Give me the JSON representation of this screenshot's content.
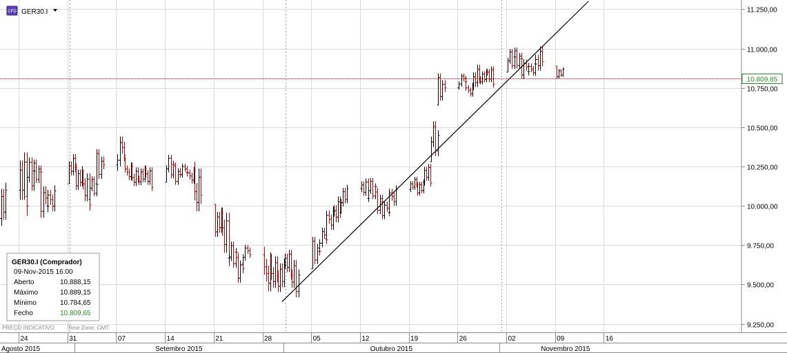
{
  "symbol": {
    "label": "GER30.I",
    "icon": "cfd-icon",
    "dropdown_icon": "dropdown-caret-icon"
  },
  "price_tag": "10.809,65",
  "info_panel": {
    "title": "GER30.I (Comprador)",
    "datetime": "09-Nov-2015 16:00",
    "rows": [
      {
        "label": "Aberto",
        "value": "10.888,15"
      },
      {
        "label": "Máximo",
        "value": "10.889,15"
      },
      {
        "label": "Mínimo",
        "value": "10.784,65"
      },
      {
        "label": "Fecho",
        "value": "10.809,65"
      }
    ]
  },
  "footer_note": {
    "indicative": "PREÇO INDICATIVO",
    "timezone": "Time Zone: GMT"
  },
  "colors": {
    "up": "#000000",
    "down": "#c00000",
    "grid": "#d9d9d9",
    "price_line": "#c00000",
    "price_tag": "#2a8a2a"
  },
  "chart_data": {
    "type": "ohlc",
    "title": "",
    "xlabel": "",
    "ylabel": "",
    "ylim": [
      9200,
      11300
    ],
    "grid": true,
    "y_ticks": [
      {
        "value": 9250,
        "label": "9.250,00"
      },
      {
        "value": 9500,
        "label": "9.500,00"
      },
      {
        "value": 9750,
        "label": "9.750,00"
      },
      {
        "value": 10000,
        "label": "10.000,00"
      },
      {
        "value": 10250,
        "label": "10.250,00"
      },
      {
        "value": 10500,
        "label": "10.500,00"
      },
      {
        "value": 10750,
        "label": "10.750,00"
      },
      {
        "value": 11000,
        "label": "11.000,00"
      },
      {
        "value": 11250,
        "label": "11.250,00"
      }
    ],
    "x_day_labels": [
      {
        "date": "2015-08-24",
        "label": "24"
      },
      {
        "date": "2015-08-31",
        "label": "31"
      },
      {
        "date": "2015-09-07",
        "label": "07"
      },
      {
        "date": "2015-09-14",
        "label": "14"
      },
      {
        "date": "2015-09-21",
        "label": "21"
      },
      {
        "date": "2015-09-28",
        "label": "28"
      },
      {
        "date": "2015-10-05",
        "label": "05"
      },
      {
        "date": "2015-10-12",
        "label": "12"
      },
      {
        "date": "2015-10-19",
        "label": "19"
      },
      {
        "date": "2015-10-26",
        "label": "26"
      },
      {
        "date": "2015-11-02",
        "label": "02"
      },
      {
        "date": "2015-11-09",
        "label": "09"
      },
      {
        "date": "2015-11-16",
        "label": "16"
      }
    ],
    "x_month_labels": [
      {
        "label": "Agosto 2015",
        "start": "2015-08-21",
        "end": "2015-09-01"
      },
      {
        "label": "Setembro 2015",
        "start": "2015-09-01",
        "end": "2015-10-01"
      },
      {
        "label": "Outubro 2015",
        "start": "2015-10-01",
        "end": "2015-11-01"
      },
      {
        "label": "Novembro 2015",
        "start": "2015-11-01",
        "end": "2015-11-20"
      }
    ],
    "period_separators": [
      "2015-08-31",
      "2015-10-01",
      "2015-11-01"
    ],
    "last_price": 10809.65,
    "trendline": {
      "start": {
        "date": "2015-09-30",
        "value": 9390
      },
      "end": {
        "date": "2015-11-13",
        "value": 11300
      }
    },
    "daily_ranges": [
      {
        "date": "2015-08-21",
        "low": 9780,
        "high": 10180
      },
      {
        "date": "2015-08-24",
        "low": 9870,
        "high": 10380
      },
      {
        "date": "2015-08-25",
        "low": 10060,
        "high": 10330
      },
      {
        "date": "2015-08-26",
        "low": 10120,
        "high": 10310
      },
      {
        "date": "2015-08-27",
        "low": 9880,
        "high": 10220
      },
      {
        "date": "2015-08-28",
        "low": 9900,
        "high": 10180
      },
      {
        "date": "2015-08-31",
        "low": 10140,
        "high": 10370
      },
      {
        "date": "2015-09-01",
        "low": 10050,
        "high": 10270
      },
      {
        "date": "2015-09-02",
        "low": 9930,
        "high": 10230
      },
      {
        "date": "2015-09-03",
        "low": 10040,
        "high": 10200
      },
      {
        "date": "2015-09-04",
        "low": 10140,
        "high": 10380
      },
      {
        "date": "2015-09-07",
        "low": 10210,
        "high": 10530
      },
      {
        "date": "2015-09-08",
        "low": 10120,
        "high": 10310
      },
      {
        "date": "2015-09-09",
        "low": 10080,
        "high": 10280
      },
      {
        "date": "2015-09-10",
        "low": 10090,
        "high": 10270
      },
      {
        "date": "2015-09-11",
        "low": 10070,
        "high": 10260
      },
      {
        "date": "2015-09-14",
        "low": 10150,
        "high": 10340
      },
      {
        "date": "2015-09-15",
        "low": 10110,
        "high": 10290
      },
      {
        "date": "2015-09-16",
        "low": 10160,
        "high": 10310
      },
      {
        "date": "2015-09-17",
        "low": 10100,
        "high": 10280
      },
      {
        "date": "2015-09-18",
        "low": 9860,
        "high": 10320
      },
      {
        "date": "2015-09-21",
        "low": 9740,
        "high": 10010
      },
      {
        "date": "2015-09-22",
        "low": 9560,
        "high": 9990
      },
      {
        "date": "2015-09-23",
        "low": 9580,
        "high": 9790
      },
      {
        "date": "2015-09-24",
        "low": 9480,
        "high": 9720
      },
      {
        "date": "2015-09-25",
        "low": 9630,
        "high": 9800
      },
      {
        "date": "2015-09-28",
        "low": 9360,
        "high": 9780
      },
      {
        "date": "2015-09-29",
        "low": 9400,
        "high": 9740
      },
      {
        "date": "2015-09-30",
        "low": 9380,
        "high": 9690
      },
      {
        "date": "2015-10-01",
        "low": 9500,
        "high": 9740
      },
      {
        "date": "2015-10-02",
        "low": 9380,
        "high": 9680
      },
      {
        "date": "2015-10-05",
        "low": 9600,
        "high": 9820
      },
      {
        "date": "2015-10-06",
        "low": 9710,
        "high": 9920
      },
      {
        "date": "2015-10-07",
        "low": 9790,
        "high": 10040
      },
      {
        "date": "2015-10-08",
        "low": 9830,
        "high": 10110
      },
      {
        "date": "2015-10-09",
        "low": 9950,
        "high": 10150
      },
      {
        "date": "2015-10-12",
        "low": 10000,
        "high": 10190
      },
      {
        "date": "2015-10-13",
        "low": 10020,
        "high": 10190
      },
      {
        "date": "2015-10-14",
        "low": 9920,
        "high": 10130
      },
      {
        "date": "2015-10-15",
        "low": 9890,
        "high": 10080
      },
      {
        "date": "2015-10-16",
        "low": 9950,
        "high": 10170
      },
      {
        "date": "2015-10-19",
        "low": 10070,
        "high": 10210
      },
      {
        "date": "2015-10-20",
        "low": 10030,
        "high": 10180
      },
      {
        "date": "2015-10-21",
        "low": 10100,
        "high": 10280
      },
      {
        "date": "2015-10-22",
        "low": 10280,
        "high": 10560
      },
      {
        "date": "2015-10-23",
        "low": 10640,
        "high": 10860
      },
      {
        "date": "2015-10-26",
        "low": 10740,
        "high": 10880
      },
      {
        "date": "2015-10-27",
        "low": 10660,
        "high": 10810
      },
      {
        "date": "2015-10-28",
        "low": 10700,
        "high": 10940
      },
      {
        "date": "2015-10-29",
        "low": 10740,
        "high": 10880
      },
      {
        "date": "2015-10-30",
        "low": 10730,
        "high": 10900
      },
      {
        "date": "2015-11-02",
        "low": 10850,
        "high": 11010
      },
      {
        "date": "2015-11-03",
        "low": 10850,
        "high": 11020
      },
      {
        "date": "2015-11-04",
        "low": 10780,
        "high": 10990
      },
      {
        "date": "2015-11-05",
        "low": 10790,
        "high": 10950
      },
      {
        "date": "2015-11-06",
        "low": 10800,
        "high": 11060
      },
      {
        "date": "2015-11-09",
        "low": 10784.65,
        "high": 10889.15
      }
    ]
  }
}
